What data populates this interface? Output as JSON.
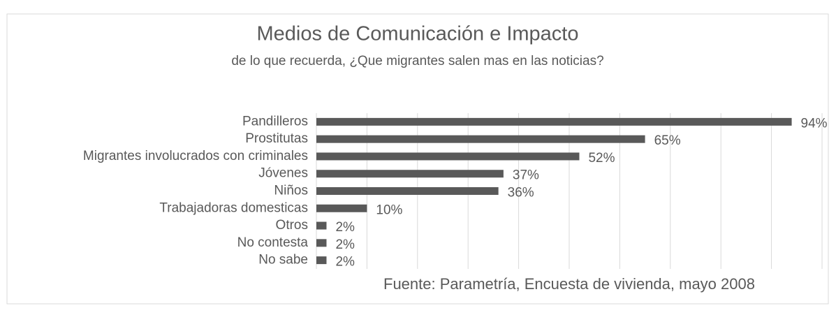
{
  "chart_data": {
    "type": "bar",
    "orientation": "horizontal",
    "title": "Medios de Comunicación e Impacto",
    "subtitle": "de lo que recuerda, ¿Que migrantes salen mas en las noticias?",
    "categories": [
      "Pandilleros",
      "Prostitutas",
      "Migrantes involucrados con criminales",
      "Jóvenes",
      "Niños",
      "Trabajadoras domesticas",
      "Otros",
      "No contesta",
      "No sabe"
    ],
    "values": [
      94,
      65,
      52,
      37,
      36,
      10,
      2,
      2,
      2
    ],
    "value_labels": [
      "94%",
      "65%",
      "52%",
      "37%",
      "36%",
      "10%",
      "2%",
      "2%",
      "2%"
    ],
    "color": "#595959",
    "xlim": [
      0,
      100
    ],
    "xticks": [
      0,
      10,
      20,
      30,
      40,
      50,
      60,
      70,
      80,
      90,
      100
    ],
    "grid": true,
    "source": "Fuente: Parametría, Encuesta de vivienda, mayo 2008"
  }
}
